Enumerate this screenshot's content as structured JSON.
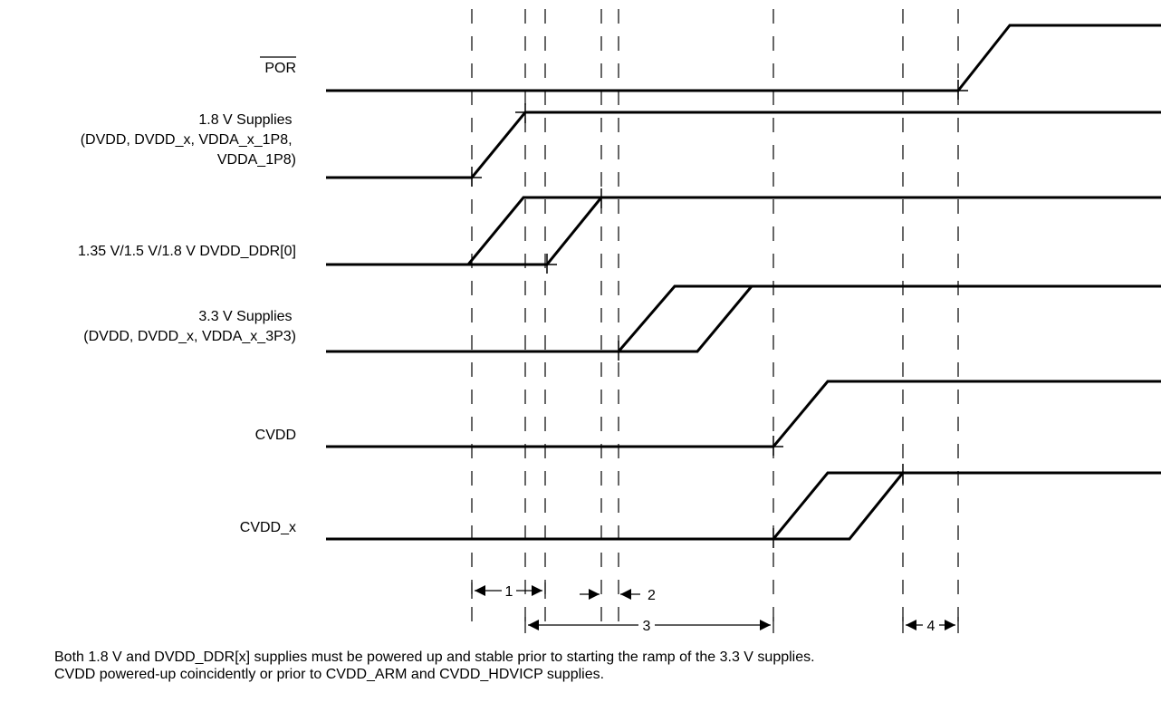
{
  "signals": {
    "por": "POR",
    "supplies_1p8": [
      "1.8 V Supplies",
      "(DVDD, DVDD_x, VDDA_x_1P8,",
      "VDDA_1P8)"
    ],
    "ddr": "1.35 V/1.5 V/1.8 V DVDD_DDR[0]",
    "supplies_3p3": [
      "3.3 V Supplies",
      "(DVDD, DVDD_x, VDDA_x_3P3)"
    ],
    "cvdd": "CVDD",
    "cvdd_x": "CVDD_x"
  },
  "markers": {
    "m1": "1",
    "m2": "2",
    "m3": "3",
    "m4": "4"
  },
  "notes": {
    "line1": "Both 1.8 V and DVDD_DDR[x] supplies must be powered up and stable prior to starting the ramp of the 3.3 V supplies.",
    "line2": "CVDD powered-up coincidently or prior to CVDD_ARM and CVDD_HDVICP supplies."
  }
}
